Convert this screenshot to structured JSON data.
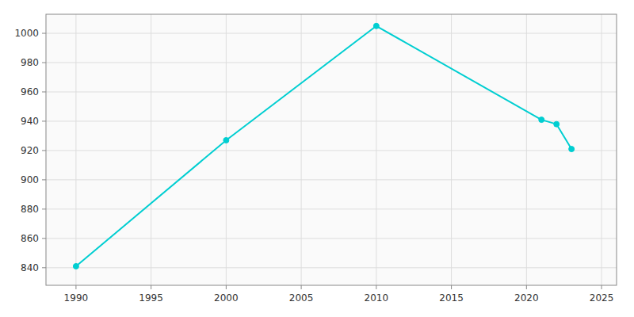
{
  "chart_data": {
    "type": "line",
    "x": [
      1990,
      2000,
      2010,
      2021,
      2022,
      2023
    ],
    "values": [
      841,
      927,
      1005,
      941,
      938,
      921
    ],
    "color": "#00CED1",
    "marker": "circle",
    "xlim": [
      1988,
      2026
    ],
    "ylim": [
      828,
      1013
    ],
    "xticks": [
      1990,
      1995,
      2000,
      2005,
      2010,
      2015,
      2020,
      2025
    ],
    "yticks": [
      840,
      860,
      880,
      900,
      920,
      940,
      960,
      980,
      1000
    ],
    "grid": true
  }
}
